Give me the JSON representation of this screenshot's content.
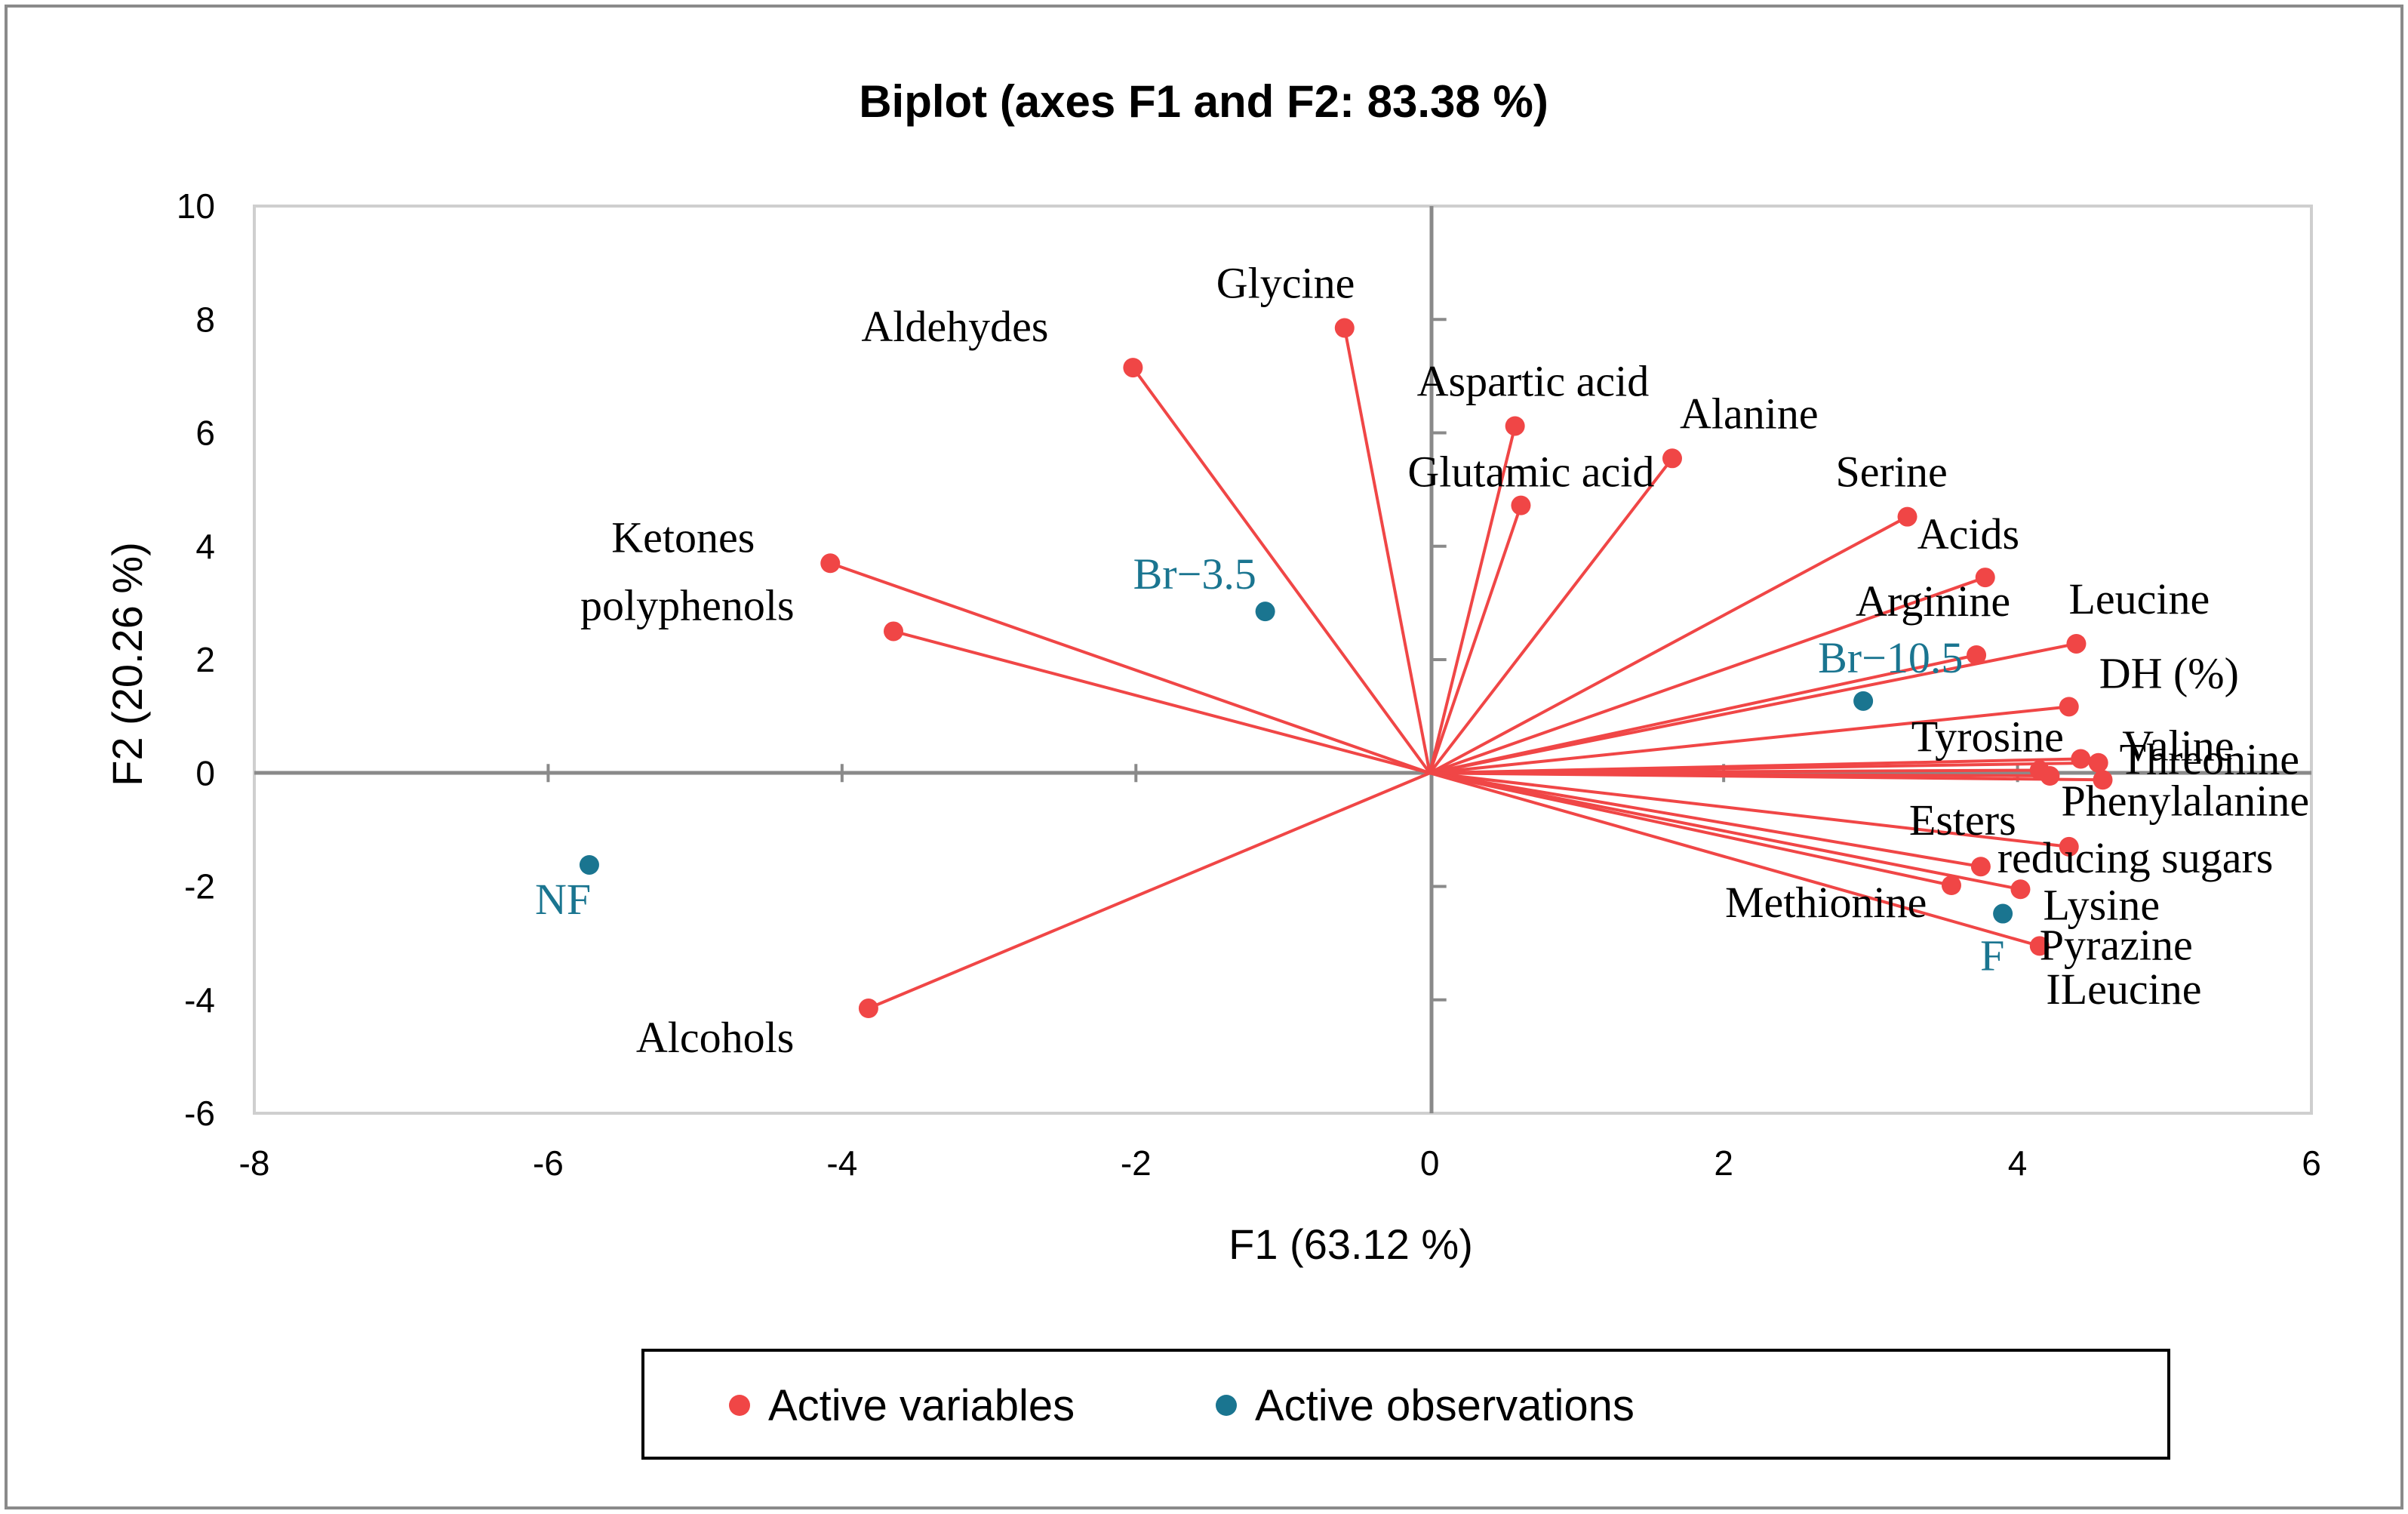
{
  "chart_data": {
    "type": "scatter",
    "title": "Biplot (axes F1 and F2: 83.38 %)",
    "xlabel": "F1 (63.12 %)",
    "ylabel": "F2 (20.26 %)",
    "xlim": [
      -8,
      6
    ],
    "ylim": [
      -6,
      10
    ],
    "xticks": [
      -8,
      -6,
      -4,
      -2,
      0,
      2,
      4,
      6
    ],
    "yticks": [
      -6,
      -4,
      -2,
      0,
      2,
      4,
      6,
      8,
      10
    ],
    "colors": {
      "variables": "#f04646",
      "observations": "#1a7590"
    },
    "legend": [
      {
        "label": "Active variables",
        "series": "variables"
      },
      {
        "label": "Active observations",
        "series": "observations"
      }
    ],
    "variables": [
      {
        "name": "Glycine",
        "x": -0.58,
        "y": 7.85
      },
      {
        "name": "Aldehydes",
        "x": -2.02,
        "y": 7.15
      },
      {
        "name": "Aspartic acid",
        "x": 0.58,
        "y": 6.12
      },
      {
        "name": "Alanine",
        "x": 1.65,
        "y": 5.55
      },
      {
        "name": "Glutamic acid",
        "x": 0.62,
        "y": 4.72
      },
      {
        "name": "Serine",
        "x": 3.25,
        "y": 4.52
      },
      {
        "name": "Ketones",
        "x": -4.08,
        "y": 3.7
      },
      {
        "name": "Acids",
        "x": 3.78,
        "y": 3.45
      },
      {
        "name": "polyphenols",
        "x": -3.65,
        "y": 2.5
      },
      {
        "name": "Leucine",
        "x": 4.4,
        "y": 2.28
      },
      {
        "name": "Arginine",
        "x": 3.72,
        "y": 2.08
      },
      {
        "name": "DH (%)",
        "x": 4.35,
        "y": 1.17
      },
      {
        "name": "Valine",
        "x": 4.43,
        "y": 0.25
      },
      {
        "name": "Tyrosine",
        "x": 4.15,
        "y": 0.05
      },
      {
        "name": "Threonine",
        "x": 4.55,
        "y": 0.18
      },
      {
        "name": "Phenylalanine",
        "x": 4.58,
        "y": -0.12
      },
      {
        "name": "reducing sugars",
        "x": 4.35,
        "y": -1.3
      },
      {
        "name": "Esters",
        "x": 3.75,
        "y": -1.65
      },
      {
        "name": "Lysine",
        "x": 4.02,
        "y": -2.05
      },
      {
        "name": "Methionine",
        "x": 3.55,
        "y": -1.98
      },
      {
        "name": "Pyrazine",
        "x": 4.15,
        "y": -3.05
      },
      {
        "name": "ILeucine",
        "x": 4.22,
        "y": -0.05
      },
      {
        "name": "Alcohols",
        "x": -3.82,
        "y": -4.15
      }
    ],
    "observations": [
      {
        "name": "Br−3.5",
        "x": -1.12,
        "y": 2.85
      },
      {
        "name": "Br−10.5",
        "x": 2.95,
        "y": 1.27
      },
      {
        "name": "NF",
        "x": -5.72,
        "y": -1.62
      },
      {
        "name": "F",
        "x": 3.9,
        "y": -2.48
      }
    ]
  }
}
